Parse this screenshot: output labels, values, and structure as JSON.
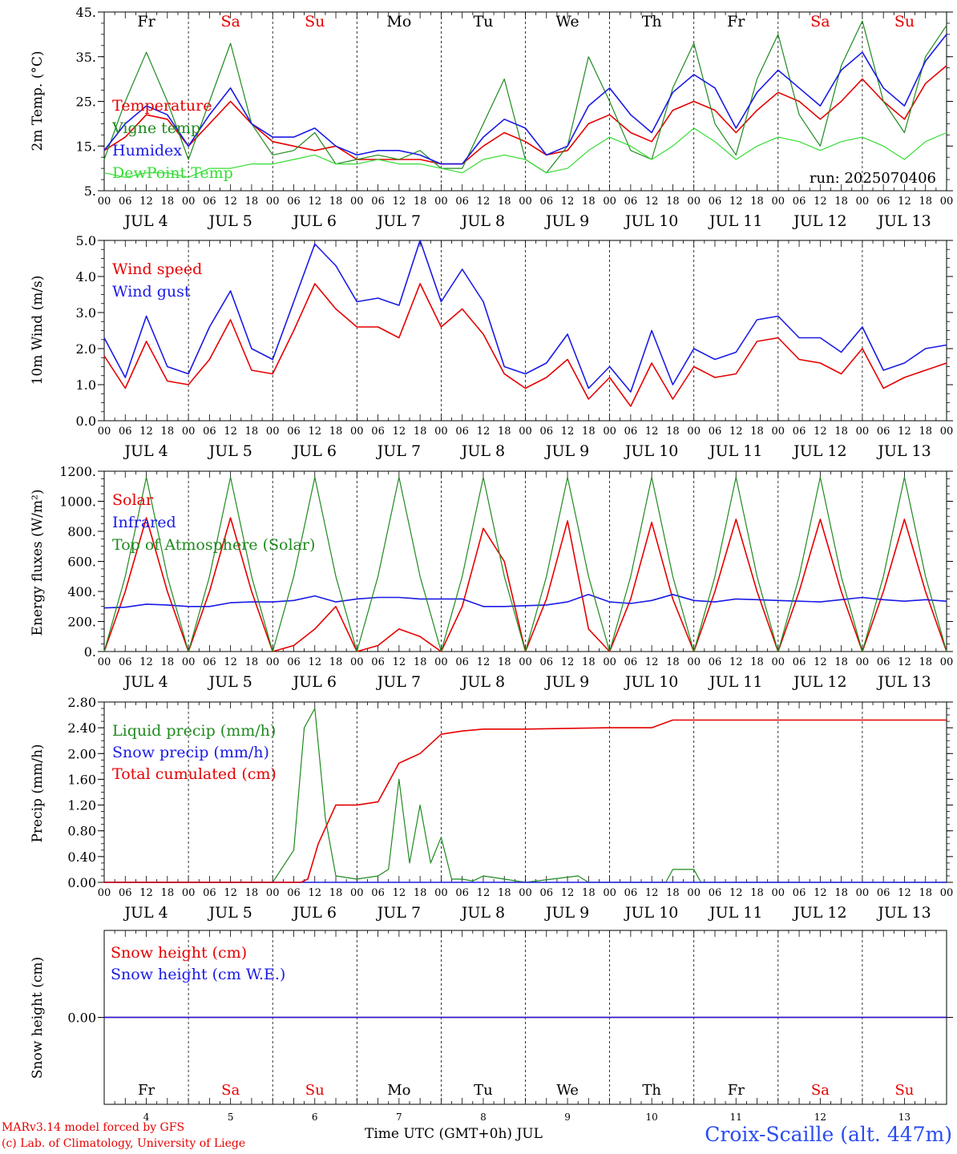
{
  "run_label": "run: 2025070406",
  "days": {
    "weekdays": [
      "Fr",
      "Sa",
      "Su",
      "Mo",
      "Tu",
      "We",
      "Th",
      "Fr",
      "Sa",
      "Su"
    ],
    "weekend": [
      false,
      true,
      true,
      false,
      false,
      false,
      false,
      false,
      true,
      true
    ],
    "date_labels": [
      "JUL  4",
      "JUL  5",
      "JUL  6",
      "JUL  7",
      "JUL  8",
      "JUL  9",
      "JUL 10",
      "JUL 11",
      "JUL 12",
      "JUL 13"
    ],
    "day_numbers": [
      "4",
      "5",
      "6",
      "7",
      "8",
      "9",
      "10",
      "11",
      "12",
      "13"
    ],
    "hour_ticks": [
      "00",
      "06",
      "12",
      "18"
    ]
  },
  "colors": {
    "red": "#e60000",
    "green": "#1f8a1f",
    "blue": "#1a1ae6",
    "lightgreen": "#33dd33",
    "station": "#2a4cf0"
  },
  "footer": {
    "credit_line1": "MARv3.14 model forced by GFS",
    "credit_line2": "(c) Lab. of Climatology, University of Liege",
    "x_title": "Time UTC (GMT+0h) JUL",
    "station": "Croix-Scaille (alt. 447m)"
  },
  "chart_data": [
    {
      "type": "line",
      "ylabel": "2m Temp. (°C)",
      "ylim": [
        5,
        45
      ],
      "ytick_labels": [
        "5.",
        "15.",
        "25.",
        "35.",
        "45."
      ],
      "series": [
        {
          "name": "Temperature",
          "color": "red",
          "x": [
            0,
            6,
            12,
            18,
            24,
            30,
            36,
            42,
            48,
            54,
            60,
            66,
            72,
            78,
            84,
            90,
            96,
            102,
            108,
            114,
            120,
            126,
            132,
            138,
            144,
            150,
            156,
            162,
            168,
            174,
            180,
            186,
            192,
            198,
            204,
            210,
            216,
            222,
            228,
            234,
            240
          ],
          "y": [
            14,
            17,
            22,
            21,
            15,
            20,
            25,
            20,
            16,
            15,
            14,
            15,
            12,
            12,
            12,
            12,
            11,
            11,
            15,
            18,
            16,
            13,
            14,
            20,
            22,
            18,
            16,
            23,
            25,
            23,
            18,
            23,
            27,
            25,
            21,
            25,
            30,
            25,
            21,
            29,
            33
          ]
        },
        {
          "name": "Vigne temp",
          "color": "green",
          "x": [
            0,
            6,
            12,
            18,
            24,
            30,
            36,
            42,
            48,
            54,
            60,
            66,
            72,
            78,
            84,
            90,
            96,
            102,
            108,
            114,
            120,
            126,
            132,
            138,
            144,
            150,
            156,
            162,
            168,
            174,
            180,
            186,
            192,
            198,
            204,
            210,
            216,
            222,
            228,
            234,
            240
          ],
          "y": [
            12,
            25,
            36,
            25,
            12,
            25,
            38,
            20,
            13,
            14,
            18,
            11,
            12,
            13,
            12,
            14,
            10,
            10,
            20,
            30,
            12,
            9,
            15,
            35,
            25,
            14,
            12,
            28,
            38,
            20,
            13,
            30,
            40,
            22,
            15,
            33,
            43,
            25,
            18,
            35,
            42
          ]
        },
        {
          "name": "Humidex",
          "color": "blue",
          "x": [
            0,
            6,
            12,
            18,
            24,
            30,
            36,
            42,
            48,
            54,
            60,
            66,
            72,
            78,
            84,
            90,
            96,
            102,
            108,
            114,
            120,
            126,
            132,
            138,
            144,
            150,
            156,
            162,
            168,
            174,
            180,
            186,
            192,
            198,
            204,
            210,
            216,
            222,
            228,
            234,
            240
          ],
          "y": [
            14,
            20,
            24,
            22,
            15,
            22,
            28,
            20,
            17,
            17,
            19,
            15,
            13,
            14,
            14,
            13,
            11,
            11,
            17,
            21,
            19,
            13,
            15,
            24,
            28,
            22,
            18,
            27,
            31,
            28,
            19,
            27,
            32,
            28,
            24,
            32,
            36,
            28,
            24,
            34,
            40
          ]
        },
        {
          "name": "DewPoint Temp",
          "color": "lightgreen",
          "x": [
            0,
            6,
            12,
            18,
            24,
            30,
            36,
            42,
            48,
            54,
            60,
            66,
            72,
            78,
            84,
            90,
            96,
            102,
            108,
            114,
            120,
            126,
            132,
            138,
            144,
            150,
            156,
            162,
            168,
            174,
            180,
            186,
            192,
            198,
            204,
            210,
            216,
            222,
            228,
            234,
            240
          ],
          "y": [
            9,
            8,
            9,
            9,
            8,
            10,
            10,
            11,
            11,
            12,
            13,
            11,
            11,
            12,
            11,
            11,
            10,
            9,
            12,
            13,
            12,
            9,
            10,
            14,
            17,
            15,
            12,
            15,
            19,
            16,
            12,
            15,
            17,
            16,
            14,
            16,
            17,
            15,
            12,
            16,
            18
          ]
        }
      ]
    },
    {
      "type": "line",
      "ylabel": "10m Wind (m/s)",
      "ylim": [
        0,
        5
      ],
      "ytick_labels": [
        "0.0",
        "1.0",
        "2.0",
        "3.0",
        "4.0",
        "5.0"
      ],
      "series": [
        {
          "name": "Wind speed",
          "color": "red",
          "x": [
            0,
            6,
            12,
            18,
            24,
            30,
            36,
            42,
            48,
            54,
            60,
            66,
            72,
            78,
            84,
            90,
            96,
            102,
            108,
            114,
            120,
            126,
            132,
            138,
            144,
            150,
            156,
            162,
            168,
            174,
            180,
            186,
            192,
            198,
            204,
            210,
            216,
            222,
            228,
            234,
            240
          ],
          "y": [
            1.8,
            0.9,
            2.2,
            1.1,
            1.0,
            1.7,
            2.8,
            1.4,
            1.3,
            2.5,
            3.8,
            3.1,
            2.6,
            2.6,
            2.3,
            3.8,
            2.6,
            3.1,
            2.4,
            1.3,
            0.9,
            1.2,
            1.7,
            0.6,
            1.2,
            0.4,
            1.6,
            0.6,
            1.5,
            1.2,
            1.3,
            2.2,
            2.3,
            1.7,
            1.6,
            1.3,
            2.0,
            0.9,
            1.2,
            1.4,
            1.6
          ]
        },
        {
          "name": "Wind gust",
          "color": "blue",
          "x": [
            0,
            6,
            12,
            18,
            24,
            30,
            36,
            42,
            48,
            54,
            60,
            66,
            72,
            78,
            84,
            90,
            96,
            102,
            108,
            114,
            120,
            126,
            132,
            138,
            144,
            150,
            156,
            162,
            168,
            174,
            180,
            186,
            192,
            198,
            204,
            210,
            216,
            222,
            228,
            234,
            240
          ],
          "y": [
            2.3,
            1.2,
            2.9,
            1.5,
            1.3,
            2.6,
            3.6,
            2.0,
            1.7,
            3.3,
            4.9,
            4.3,
            3.3,
            3.4,
            3.2,
            5.0,
            3.3,
            4.2,
            3.3,
            1.5,
            1.3,
            1.6,
            2.4,
            0.9,
            1.5,
            0.8,
            2.5,
            1.0,
            2.0,
            1.7,
            1.9,
            2.8,
            2.9,
            2.3,
            2.3,
            1.9,
            2.6,
            1.4,
            1.6,
            2.0,
            2.1
          ]
        }
      ]
    },
    {
      "type": "line",
      "ylabel": "Energy fluxes (W/m²)",
      "ylim": [
        0,
        1200
      ],
      "ytick_labels": [
        "0.",
        "200.",
        "400.",
        "600.",
        "800.",
        "1000.",
        "1200."
      ],
      "series": [
        {
          "name": "Solar",
          "color": "red",
          "x": [
            0,
            6,
            12,
            18,
            24,
            30,
            36,
            42,
            48,
            54,
            60,
            66,
            72,
            78,
            84,
            90,
            96,
            102,
            108,
            114,
            120,
            126,
            132,
            138,
            144,
            150,
            156,
            162,
            168,
            174,
            180,
            186,
            192,
            198,
            204,
            210,
            216,
            222,
            228,
            234,
            240
          ],
          "y": [
            0,
            400,
            890,
            400,
            0,
            400,
            890,
            400,
            0,
            40,
            150,
            300,
            0,
            40,
            150,
            100,
            0,
            300,
            820,
            600,
            0,
            350,
            870,
            150,
            0,
            350,
            860,
            350,
            0,
            400,
            880,
            400,
            0,
            400,
            880,
            400,
            0,
            400,
            880,
            400,
            0
          ]
        },
        {
          "name": "Infrared",
          "color": "blue",
          "x": [
            0,
            6,
            12,
            18,
            24,
            30,
            36,
            42,
            48,
            54,
            60,
            66,
            72,
            78,
            84,
            90,
            96,
            102,
            108,
            114,
            120,
            126,
            132,
            138,
            144,
            150,
            156,
            162,
            168,
            174,
            180,
            186,
            192,
            198,
            204,
            210,
            216,
            222,
            228,
            234,
            240
          ],
          "y": [
            290,
            295,
            315,
            310,
            300,
            300,
            325,
            330,
            330,
            340,
            370,
            330,
            350,
            360,
            360,
            350,
            350,
            350,
            300,
            300,
            305,
            310,
            330,
            380,
            330,
            320,
            340,
            380,
            340,
            330,
            350,
            345,
            340,
            335,
            330,
            345,
            360,
            345,
            335,
            345,
            335
          ]
        },
        {
          "name": "Top of Atmosphere (Solar)",
          "color": "green",
          "x": [
            0,
            6,
            12,
            18,
            24,
            30,
            36,
            42,
            48,
            54,
            60,
            66,
            72,
            78,
            84,
            90,
            96,
            102,
            108,
            114,
            120,
            126,
            132,
            138,
            144,
            150,
            156,
            162,
            168,
            174,
            180,
            186,
            192,
            198,
            204,
            210,
            216,
            222,
            228,
            234,
            240
          ],
          "y": [
            0,
            500,
            1160,
            500,
            0,
            500,
            1160,
            500,
            0,
            500,
            1160,
            500,
            0,
            500,
            1160,
            500,
            0,
            500,
            1160,
            500,
            0,
            500,
            1160,
            500,
            0,
            500,
            1160,
            500,
            0,
            500,
            1160,
            500,
            0,
            500,
            1160,
            500,
            0,
            500,
            1160,
            500,
            0
          ]
        }
      ]
    },
    {
      "type": "line",
      "ylabel": "Precip (mm/h)",
      "ylim": [
        0,
        2.8
      ],
      "ytick_labels": [
        "0.00",
        "0.40",
        "0.80",
        "1.20",
        "1.60",
        "2.00",
        "2.40",
        "2.80"
      ],
      "series": [
        {
          "name": "Liquid precip (mm/h)",
          "color": "green",
          "x": [
            0,
            48,
            54,
            57,
            60,
            63,
            66,
            72,
            78,
            81,
            84,
            87,
            90,
            93,
            96,
            99,
            102,
            105,
            108,
            120,
            135,
            138,
            160,
            162,
            165,
            168,
            170,
            240
          ],
          "y": [
            0,
            0,
            0.5,
            2.4,
            2.7,
            1.0,
            0.1,
            0.05,
            0.1,
            0.2,
            1.6,
            0.3,
            1.2,
            0.3,
            0.7,
            0.05,
            0.05,
            0.02,
            0.1,
            0,
            0.1,
            0,
            0,
            0.2,
            0.2,
            0.2,
            0,
            0
          ]
        },
        {
          "name": "Snow precip (mm/h)",
          "color": "blue",
          "x": [
            0,
            240
          ],
          "y": [
            0,
            0
          ]
        },
        {
          "name": "Total cumulated (cm)",
          "color": "red",
          "x": [
            0,
            56,
            58,
            61,
            66,
            72,
            78,
            84,
            90,
            96,
            102,
            108,
            120,
            144,
            156,
            162,
            240
          ],
          "y": [
            0,
            0,
            0.05,
            0.6,
            1.2,
            1.2,
            1.25,
            1.85,
            2.0,
            2.3,
            2.35,
            2.38,
            2.38,
            2.4,
            2.4,
            2.52,
            2.52
          ]
        }
      ]
    },
    {
      "type": "line",
      "ylabel": "Snow height (cm)",
      "ylim": [
        -1,
        1
      ],
      "ytick_labels": [
        "0.00"
      ],
      "series": [
        {
          "name": "Snow height (cm)",
          "color": "red",
          "x": [
            0,
            240
          ],
          "y": [
            0,
            0
          ]
        },
        {
          "name": "Snow height (cm W.E.)",
          "color": "blue",
          "x": [
            0,
            240
          ],
          "y": [
            0,
            0
          ]
        }
      ]
    }
  ]
}
